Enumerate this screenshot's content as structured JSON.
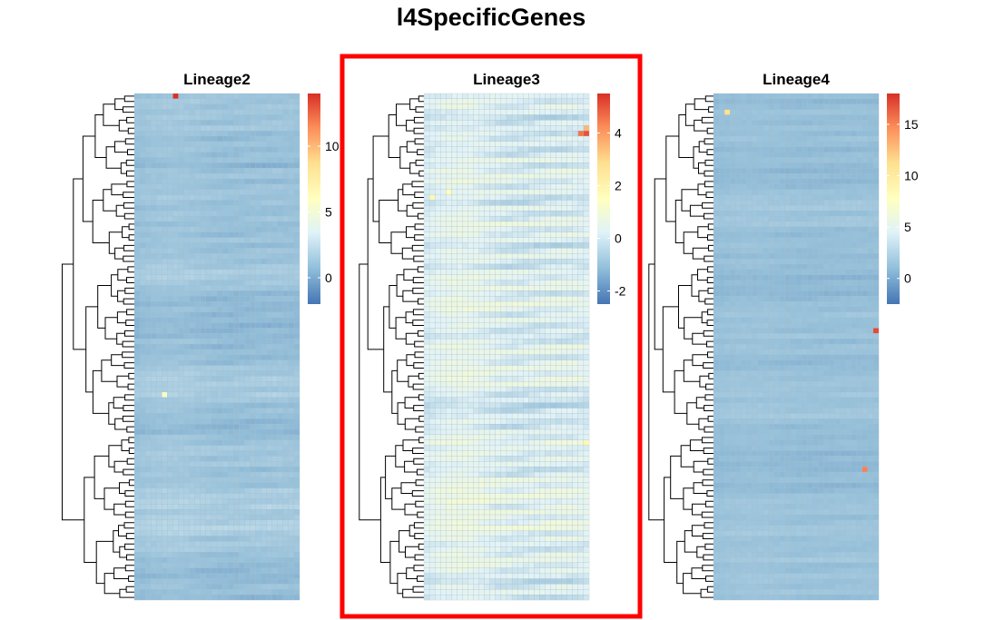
{
  "title": "l4SpecificGenes",
  "highlight_color": "#ff0000",
  "colorscale": [
    "#4575B4",
    "#91BFDB",
    "#E0F3F8",
    "#FFFFBF",
    "#FEE090",
    "#FC8D59",
    "#D73027"
  ],
  "chart_data": [
    {
      "type": "heatmap",
      "title": "Lineage2",
      "n_rows": 95,
      "n_cols": 30,
      "color_range": [
        -2,
        14
      ],
      "legend_ticks": [
        0,
        5,
        10
      ],
      "base_value": 1.0,
      "row_variation": 0.8,
      "col_trend": 0.3,
      "hotspots": [
        {
          "row": 0,
          "col": 7,
          "value": 14
        },
        {
          "row": 56,
          "col": 5,
          "value": 5.5
        }
      ],
      "highlighted": false
    },
    {
      "type": "heatmap",
      "title": "Lineage3",
      "n_rows": 95,
      "n_cols": 30,
      "color_range": [
        -2.5,
        5.5
      ],
      "legend_ticks": [
        -2,
        0,
        2,
        4
      ],
      "base_value": 0.0,
      "row_variation": 0.6,
      "col_trend": 0.4,
      "hotspots": [
        {
          "row": 7,
          "col": 29,
          "value": 5
        },
        {
          "row": 7,
          "col": 28,
          "value": 4.5
        },
        {
          "row": 6,
          "col": 29,
          "value": 3.5
        },
        {
          "row": 19,
          "col": 1,
          "value": 1.8
        },
        {
          "row": 18,
          "col": 4,
          "value": 1.6
        },
        {
          "row": 65,
          "col": 29,
          "value": 1.8
        }
      ],
      "highlighted": true
    },
    {
      "type": "heatmap",
      "title": "Lineage4",
      "n_rows": 95,
      "n_cols": 30,
      "color_range": [
        -2.5,
        18
      ],
      "legend_ticks": [
        0,
        5,
        10,
        15
      ],
      "base_value": 1.0,
      "row_variation": 0.7,
      "col_trend": 0.2,
      "hotspots": [
        {
          "row": 3,
          "col": 2,
          "value": 11
        },
        {
          "row": 44,
          "col": 29,
          "value": 17
        },
        {
          "row": 70,
          "col": 27,
          "value": 15
        }
      ],
      "highlighted": false
    }
  ]
}
